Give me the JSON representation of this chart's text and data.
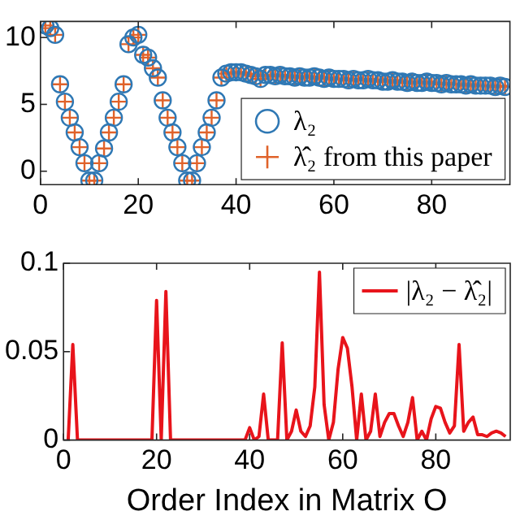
{
  "chart_data": [
    {
      "type": "scatter",
      "xlim": [
        0,
        96
      ],
      "ylim": [
        -1,
        11.2
      ],
      "xticks": [
        0,
        20,
        40,
        60,
        80
      ],
      "yticks": [
        0,
        5,
        10
      ],
      "legend": "bottom right",
      "x": [
        1,
        2,
        3,
        4,
        5,
        6,
        7,
        8,
        9,
        10,
        11,
        12,
        13,
        14,
        15,
        16,
        17,
        18,
        19,
        20,
        21,
        22,
        23,
        24,
        25,
        26,
        27,
        28,
        29,
        30,
        31,
        32,
        33,
        34,
        35,
        36,
        37,
        38,
        39,
        40,
        41,
        42,
        43,
        44,
        45,
        46,
        47,
        48,
        49,
        50,
        51,
        52,
        53,
        54,
        55,
        56,
        57,
        58,
        59,
        60,
        61,
        62,
        63,
        64,
        65,
        66,
        67,
        68,
        69,
        70,
        71,
        72,
        73,
        74,
        75,
        76,
        77,
        78,
        79,
        80,
        81,
        82,
        83,
        84,
        85,
        86,
        87,
        88,
        89,
        90,
        91,
        92,
        93,
        94,
        95
      ],
      "series": [
        {
          "name": "λ₂",
          "color": "#2f78b4",
          "marker": "circle",
          "values": [
            10.9,
            10.7,
            10.2,
            6.5,
            5.2,
            4.0,
            2.9,
            1.8,
            0.6,
            -0.7,
            -0.7,
            0.6,
            1.7,
            2.9,
            4.0,
            5.2,
            6.5,
            9.5,
            10.0,
            10.2,
            8.7,
            8.5,
            7.7,
            7.0,
            5.3,
            4.0,
            2.9,
            1.8,
            0.6,
            -0.7,
            -0.7,
            0.6,
            1.8,
            2.9,
            4.0,
            5.3,
            7.0,
            7.3,
            7.4,
            7.4,
            7.4,
            7.3,
            7.2,
            7.1,
            6.9,
            7.2,
            7.2,
            7.1,
            7.2,
            7.1,
            7.1,
            7.0,
            7.1,
            7.0,
            7.0,
            7.1,
            7.0,
            6.9,
            7.0,
            6.9,
            6.9,
            6.9,
            6.8,
            6.9,
            6.8,
            6.8,
            6.9,
            6.8,
            6.8,
            6.7,
            6.7,
            6.8,
            6.7,
            6.7,
            6.6,
            6.7,
            6.6,
            6.6,
            6.7,
            6.6,
            6.6,
            6.5,
            6.6,
            6.5,
            6.5,
            6.5,
            6.4,
            6.5,
            6.4,
            6.4,
            6.4,
            6.4,
            6.3,
            6.4,
            6.3
          ]
        },
        {
          "name": "λ̂₂ from this paper",
          "color": "#e0622a",
          "marker": "cross",
          "values": [
            10.9,
            10.7,
            10.2,
            6.5,
            5.2,
            4.0,
            2.9,
            1.8,
            0.6,
            -0.7,
            -0.7,
            0.6,
            1.7,
            2.9,
            4.0,
            5.2,
            6.5,
            9.5,
            10.0,
            10.2,
            8.7,
            8.5,
            7.7,
            7.0,
            5.3,
            4.0,
            2.9,
            1.8,
            0.6,
            -0.7,
            -0.7,
            0.6,
            1.8,
            2.9,
            4.0,
            5.3,
            7.0,
            7.3,
            7.4,
            7.4,
            7.4,
            7.3,
            7.2,
            7.1,
            6.9,
            7.2,
            7.2,
            7.1,
            7.2,
            7.1,
            7.1,
            7.0,
            7.1,
            7.0,
            7.0,
            7.1,
            7.0,
            6.9,
            7.0,
            6.9,
            6.9,
            6.9,
            6.8,
            6.9,
            6.8,
            6.8,
            6.9,
            6.8,
            6.8,
            6.7,
            6.7,
            6.8,
            6.7,
            6.7,
            6.6,
            6.7,
            6.6,
            6.6,
            6.7,
            6.6,
            6.6,
            6.5,
            6.6,
            6.5,
            6.5,
            6.5,
            6.4,
            6.5,
            6.4,
            6.4,
            6.4,
            6.4,
            6.3,
            6.4,
            6.3
          ]
        }
      ]
    },
    {
      "type": "line",
      "xlabel": "Order Index in Matrix O",
      "xlim": [
        0,
        96
      ],
      "ylim": [
        0,
        0.1
      ],
      "xticks": [
        0,
        20,
        40,
        60,
        80
      ],
      "yticks": [
        0,
        0.05,
        0.1
      ],
      "legend": "top right",
      "marker": "none",
      "x": [
        1,
        2,
        3,
        4,
        5,
        6,
        7,
        8,
        9,
        10,
        11,
        12,
        13,
        14,
        15,
        16,
        17,
        18,
        19,
        20,
        21,
        22,
        23,
        24,
        25,
        26,
        27,
        28,
        29,
        30,
        31,
        32,
        33,
        34,
        35,
        36,
        37,
        38,
        39,
        40,
        41,
        42,
        43,
        44,
        45,
        46,
        47,
        48,
        49,
        50,
        51,
        52,
        53,
        54,
        55,
        56,
        57,
        58,
        59,
        60,
        61,
        62,
        63,
        64,
        65,
        66,
        67,
        68,
        69,
        70,
        71,
        72,
        73,
        74,
        75,
        76,
        77,
        78,
        79,
        80,
        81,
        82,
        83,
        84,
        85,
        86,
        87,
        88,
        89,
        90,
        91,
        92,
        93,
        94,
        95
      ],
      "series": [
        {
          "name": "|λ₂ − λ̂₂|",
          "color": "#e8141b",
          "values": [
            0,
            0.054,
            0,
            0,
            0,
            0,
            0,
            0,
            0,
            0,
            0,
            0,
            0,
            0,
            0,
            0,
            0,
            0,
            0,
            0.079,
            0,
            0.084,
            0,
            0,
            0,
            0,
            0,
            0,
            0,
            0,
            0,
            0,
            0,
            0,
            0,
            0,
            0,
            0,
            0,
            0.007,
            0,
            0.002,
            0.026,
            0,
            0,
            0,
            0.055,
            0,
            0.005,
            0.017,
            0.005,
            0.002,
            0.008,
            0.03,
            0.095,
            0.02,
            0,
            0.01,
            0.04,
            0.058,
            0.052,
            0.03,
            0,
            0.026,
            0,
            0.005,
            0.026,
            0.002,
            0.01,
            0.015,
            0.015,
            0.008,
            0.002,
            0.01,
            0.024,
            0,
            0.005,
            0,
            0.012,
            0.019,
            0.018,
            0.01,
            0.004,
            0.008,
            0.054,
            0.005,
            0.01,
            0.013,
            0.003,
            0.003,
            0.002,
            0.004,
            0.005,
            0.004,
            0.002
          ]
        }
      ]
    }
  ]
}
